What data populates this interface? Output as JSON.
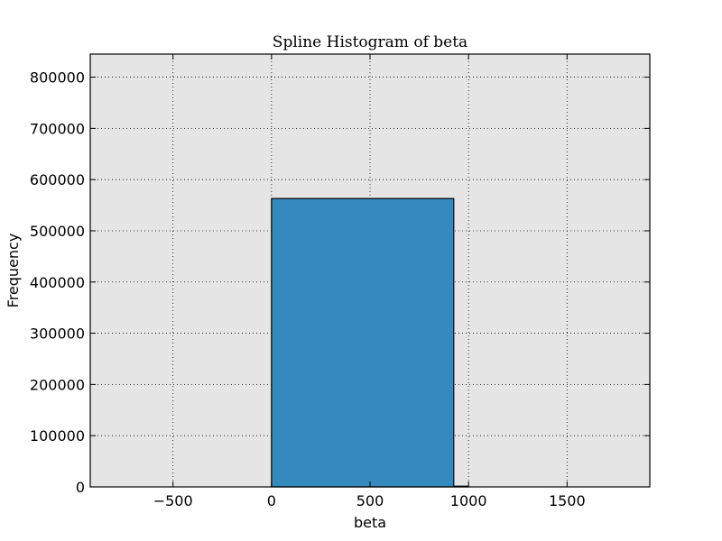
{
  "chart_data": {
    "type": "bar",
    "title": "Spline Histogram of beta",
    "xlabel": "beta",
    "ylabel": "Frequency",
    "xlim": [
      -920,
      1920
    ],
    "ylim": [
      0,
      845000
    ],
    "xticks": [
      -500,
      0,
      500,
      1000,
      1500
    ],
    "xtick_labels": [
      "−500",
      "0",
      "500",
      "1000",
      "1500"
    ],
    "yticks": [
      0,
      100000,
      200000,
      300000,
      400000,
      500000,
      600000,
      700000,
      800000
    ],
    "ytick_labels": [
      "0",
      "100000",
      "200000",
      "300000",
      "400000",
      "500000",
      "600000",
      "700000",
      "800000"
    ],
    "bins": [
      {
        "x0": 0,
        "x1": 925,
        "value": 563000
      },
      {
        "x0": 925,
        "x1": 1000,
        "value": 0
      }
    ],
    "grid": true,
    "bar_color": "#348abd",
    "plot_background": "#e5e5e5"
  }
}
